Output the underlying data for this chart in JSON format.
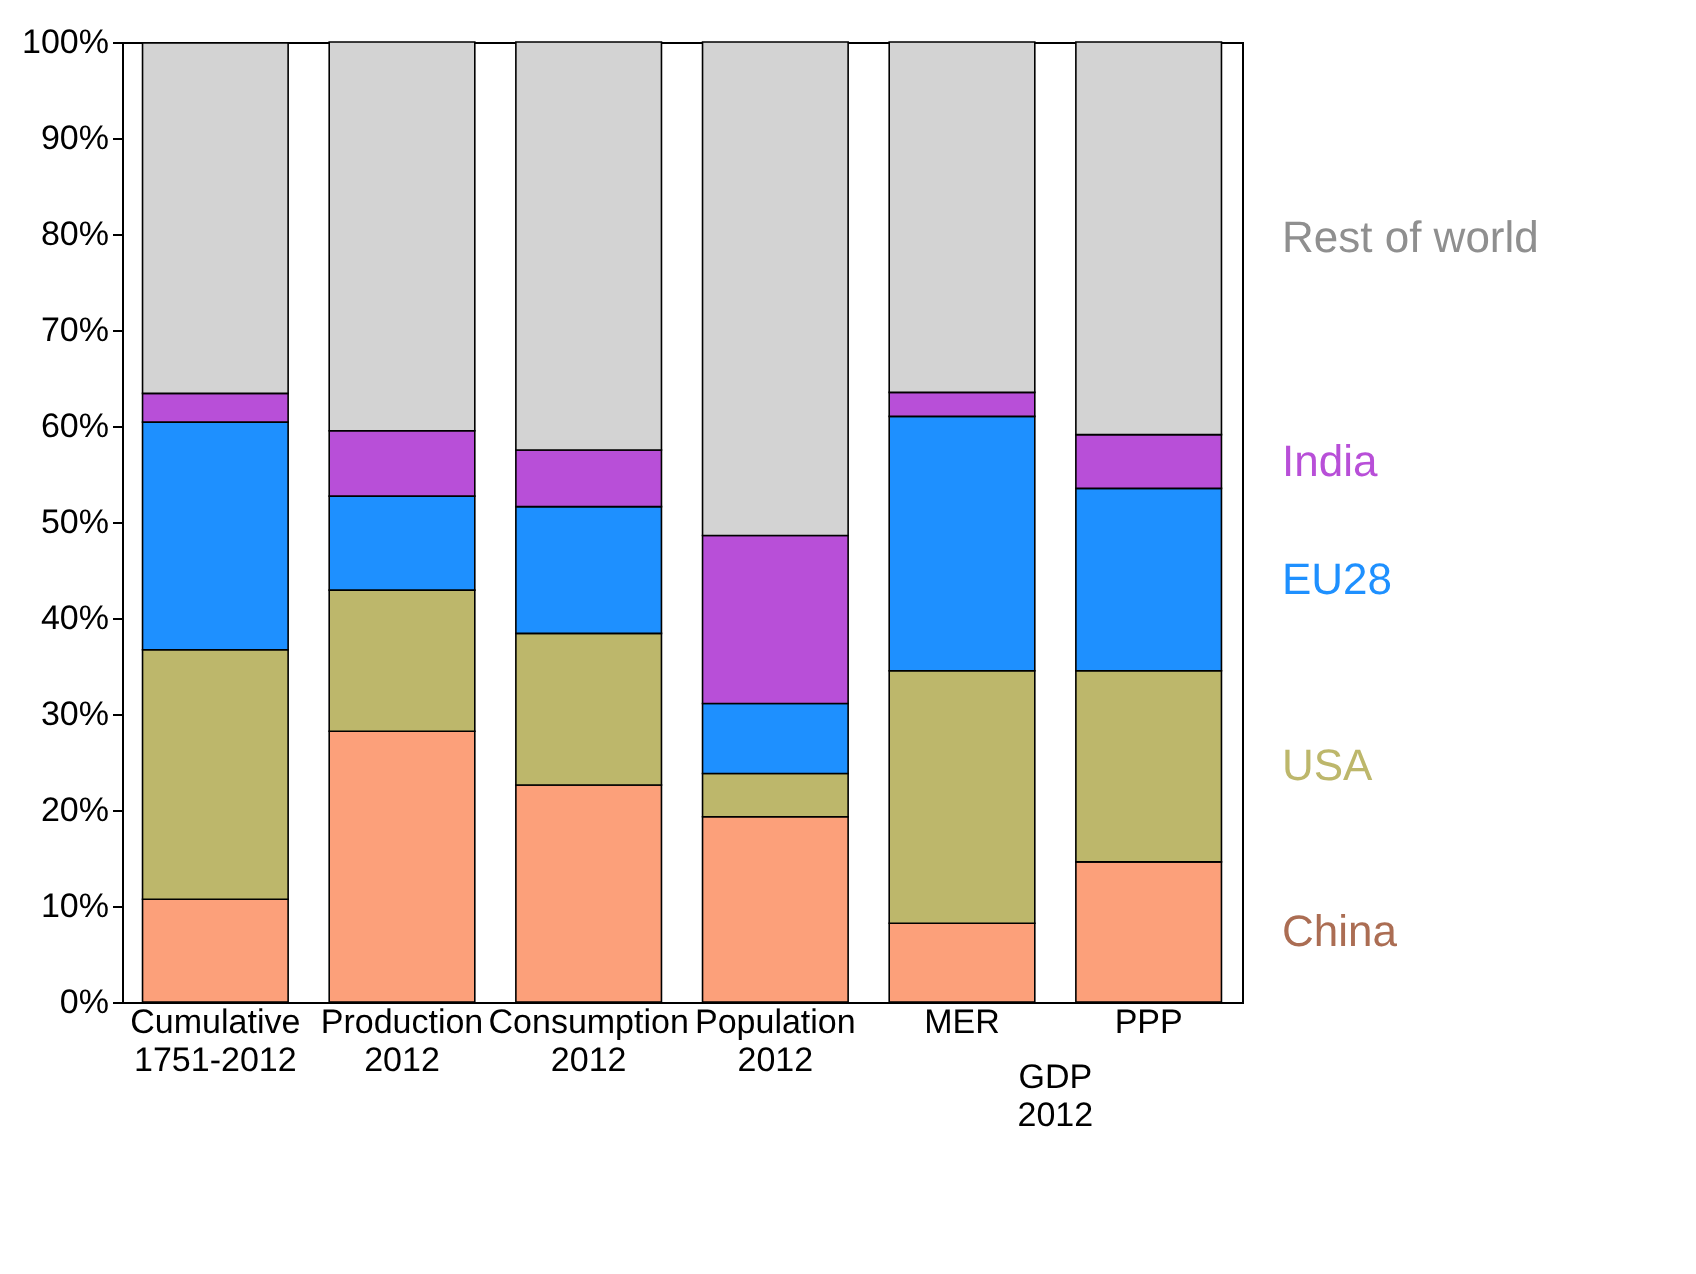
{
  "chart_data": {
    "type": "bar",
    "stacked": true,
    "categories": [
      "Cumulative 1751-2012",
      "Production 2012",
      "Consumption 2012",
      "Population 2012",
      "MER",
      "PPP"
    ],
    "series": [
      {
        "name": "China",
        "color": "#fca07a",
        "values": [
          10.7,
          28.2,
          22.6,
          19.3,
          8.2,
          14.6
        ]
      },
      {
        "name": "USA",
        "color": "#bdb76b",
        "values": [
          26,
          14.7,
          15.8,
          4.5,
          26.3,
          19.9
        ]
      },
      {
        "name": "EU28",
        "color": "#1e90ff",
        "values": [
          23.7,
          9.8,
          13.2,
          7.3,
          26.5,
          19
        ]
      },
      {
        "name": "India",
        "color": "#b84fd8",
        "values": [
          3,
          6.8,
          5.9,
          17.5,
          2.5,
          5.6
        ]
      },
      {
        "name": "Rest of world",
        "color": "#d3d3d3",
        "values": [
          36.5,
          40.5,
          42.5,
          51.4,
          36.5,
          40.9
        ]
      }
    ],
    "ylim": [
      0,
      100
    ],
    "yticks": [
      {
        "value": 0,
        "label": "0%"
      },
      {
        "value": 10,
        "label": "10%"
      },
      {
        "value": 20,
        "label": "20%"
      },
      {
        "value": 30,
        "label": "30%"
      },
      {
        "value": 40,
        "label": "40%"
      },
      {
        "value": 50,
        "label": "50%"
      },
      {
        "value": 60,
        "label": "60%"
      },
      {
        "value": 70,
        "label": "70%"
      },
      {
        "value": 80,
        "label": "80%"
      },
      {
        "value": 90,
        "label": "90%"
      },
      {
        "value": 100,
        "label": "100%"
      }
    ],
    "annotations": [
      "GDP 2012"
    ],
    "grid": false,
    "legend": "right"
  }
}
